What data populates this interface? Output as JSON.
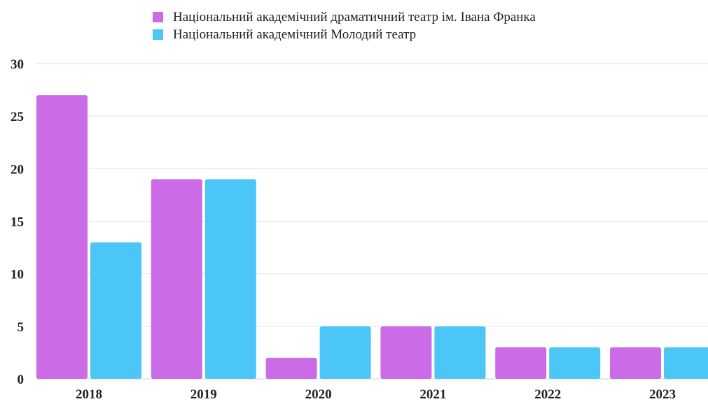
{
  "chart_data": {
    "type": "bar",
    "categories": [
      "2018",
      "2019",
      "2020",
      "2021",
      "2022",
      "2023"
    ],
    "series": [
      {
        "name": "Національний академічний драматичний театр ім. Івана Франка",
        "color": "#cb6ce6",
        "values": [
          27,
          19,
          2,
          5,
          3,
          3
        ]
      },
      {
        "name": "Національний академічний Молодий театр",
        "color": "#4cc6f7",
        "values": [
          13,
          19,
          5,
          5,
          3,
          3
        ]
      }
    ],
    "ylim": [
      0,
      30
    ],
    "yticks": [
      "0",
      "5",
      "10",
      "15",
      "20",
      "25",
      "30"
    ],
    "grid": true,
    "legend_position": "top-center"
  }
}
